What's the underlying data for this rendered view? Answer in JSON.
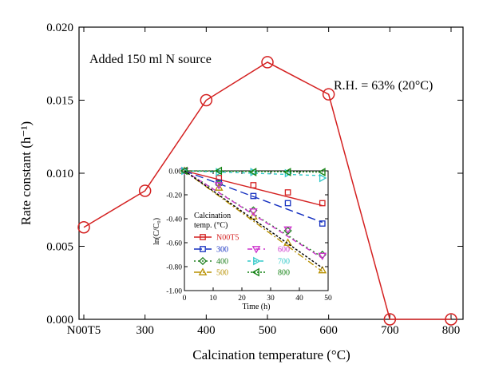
{
  "chart_data": [
    {
      "type": "line",
      "categories": [
        "N00T5",
        "300",
        "400",
        "500",
        "600",
        "700",
        "800"
      ],
      "values": [
        0.0063,
        0.0088,
        0.015,
        0.0176,
        0.0154,
        0.0,
        0.0
      ],
      "xlabel": "Calcination temperature (°C)",
      "ylabel": "Rate constant (h⁻¹)",
      "ylim": [
        0,
        0.02
      ],
      "yticks": [
        "0.000",
        "0.005",
        "0.010",
        "0.015",
        "0.020"
      ],
      "color": "#d42020",
      "annotations": [
        "Added 150 ml N source",
        "R.H. = 63% (20°C)"
      ]
    },
    {
      "type": "scatter",
      "xlabel": "Time (h)",
      "ylabel": "ln(C/C₀)",
      "xlim": [
        0,
        50
      ],
      "ylim": [
        -1.0,
        0.0
      ],
      "xticks": [
        "0",
        "10",
        "20",
        "30",
        "40",
        "50"
      ],
      "yticks": [
        "0.00",
        "-0.20",
        "-0.40",
        "-0.60",
        "-0.80",
        "-1.00"
      ],
      "legend_title": [
        "Calcination",
        "temp. (°C)"
      ],
      "series": [
        {
          "name": "N00T5",
          "color": "#d42020",
          "marker": "square",
          "dash": "",
          "x": [
            0,
            12,
            24,
            36,
            48
          ],
          "y": [
            0.0,
            -0.06,
            -0.12,
            -0.18,
            -0.27
          ],
          "fit": [
            [
              0,
              0.0
            ],
            [
              48,
              -0.29
            ]
          ]
        },
        {
          "name": "300",
          "color": "#1530c0",
          "marker": "square",
          "dash": "10,5",
          "x": [
            0,
            12,
            24,
            36,
            48
          ],
          "y": [
            0.0,
            -0.1,
            -0.21,
            -0.27,
            -0.44
          ],
          "fit": [
            [
              0,
              0.0
            ],
            [
              48,
              -0.43
            ]
          ]
        },
        {
          "name": "400",
          "color": "#208020",
          "marker": "diamond",
          "dash": "2,3",
          "x": [
            0,
            12,
            24,
            36,
            48
          ],
          "y": [
            0.0,
            -0.11,
            -0.33,
            -0.5,
            -0.7
          ],
          "fit": [
            [
              0,
              0.0
            ],
            [
              48,
              -0.72
            ]
          ]
        },
        {
          "name": "500",
          "color": "#b89000",
          "marker": "triangle-up",
          "dash": "8,3,2,3",
          "x": [
            0,
            12,
            24,
            36,
            48
          ],
          "y": [
            0.0,
            -0.14,
            -0.38,
            -0.6,
            -0.83
          ],
          "fit": [
            [
              0,
              0.0
            ],
            [
              48,
              -0.84
            ]
          ]
        },
        {
          "name": "600",
          "color": "#cc30cc",
          "marker": "triangle-down",
          "dash": "6,4",
          "x": [
            0,
            12,
            24,
            36,
            48
          ],
          "y": [
            0.0,
            -0.12,
            -0.34,
            -0.49,
            -0.71
          ],
          "fit": [
            [
              0,
              0.0
            ],
            [
              48,
              -0.73
            ]
          ]
        },
        {
          "name": "700",
          "color": "#30c8c8",
          "marker": "triangle-right",
          "dash": "4,4",
          "x": [
            0,
            12,
            24,
            36,
            48
          ],
          "y": [
            0.0,
            -0.01,
            -0.01,
            -0.02,
            -0.06
          ],
          "fit": [
            [
              0,
              0.0
            ],
            [
              48,
              -0.04
            ]
          ]
        },
        {
          "name": "800",
          "color": "#108010",
          "marker": "triangle-left",
          "dash": "2,2",
          "x": [
            0,
            12,
            24,
            36,
            48
          ],
          "y": [
            0.0,
            0.0,
            -0.01,
            -0.01,
            -0.01
          ],
          "fit": [
            [
              0,
              0.0
            ],
            [
              48,
              -0.01
            ]
          ]
        },
        {
          "name": "",
          "color": "#000000",
          "marker": "none",
          "dash": "3,2",
          "x": [],
          "y": [],
          "fit": [
            [
              0,
              0.0
            ],
            [
              48,
              -0.81
            ]
          ]
        }
      ]
    }
  ]
}
